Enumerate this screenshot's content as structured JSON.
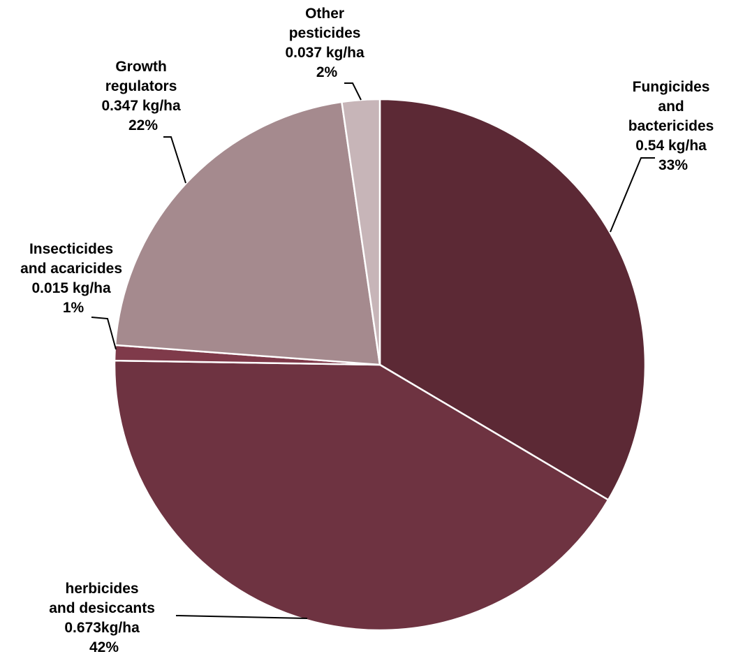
{
  "chart_data": {
    "type": "pie",
    "unit": "kg/ha",
    "slices": [
      {
        "category_lines": [
          "Fungicides",
          "and",
          "bactericides"
        ],
        "value_label": "0.54 kg/ha",
        "percent_label": "33%",
        "value": 0.54,
        "color": "#5c2935"
      },
      {
        "category_lines": [
          "herbicides",
          "and desiccants"
        ],
        "value_label": "0.673kg/ha",
        "percent_label": "42%",
        "value": 0.673,
        "color": "#6e3341"
      },
      {
        "category_lines": [
          "Insecticides",
          "and acaricides"
        ],
        "value_label": "0.015 kg/ha",
        "percent_label": "1%",
        "value": 0.015,
        "color": "#7f3a4a"
      },
      {
        "category_lines": [
          "Growth",
          "regulators"
        ],
        "value_label": "0.347 kg/ha",
        "percent_label": "22%",
        "value": 0.347,
        "color": "#a58a8e"
      },
      {
        "category_lines": [
          "Other",
          "pesticides"
        ],
        "value_label": "0.037 kg/ha",
        "percent_label": "2%",
        "value": 0.037,
        "color": "#c7b5b8"
      }
    ]
  }
}
